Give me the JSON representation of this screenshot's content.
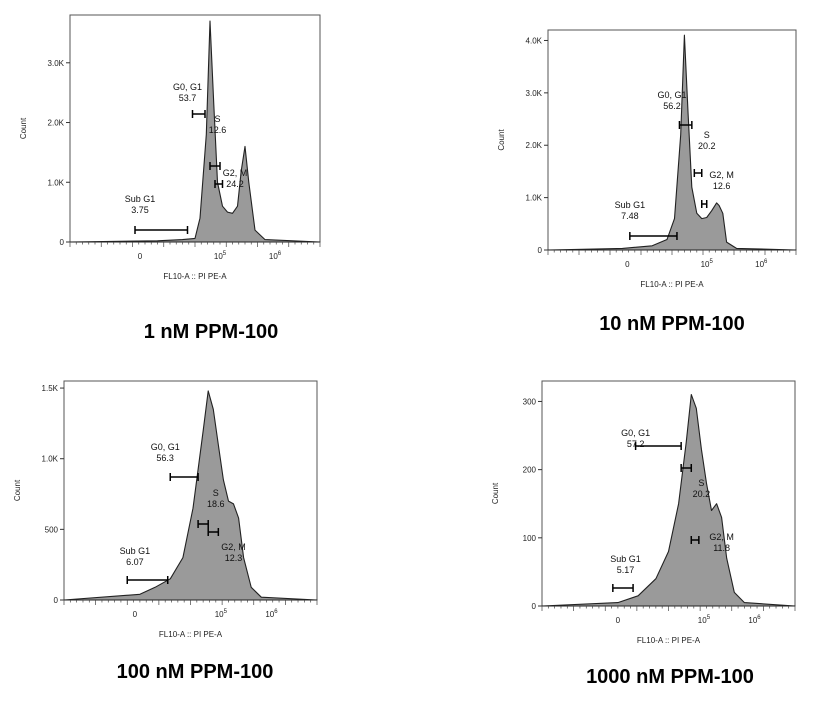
{
  "chart_data": [
    {
      "type": "area",
      "caption": "1 nM PPM-100",
      "xlabel": "FL10-A :: PI PE-A",
      "ylabel": "Count",
      "yticks": [
        "0",
        "1.0K",
        "2.0K",
        "3.0K"
      ],
      "ytick_values": [
        0,
        1000,
        2000,
        3000
      ],
      "xticks": [
        "0",
        "10^5",
        "10^6"
      ],
      "gates": [
        {
          "name": "Sub G1",
          "value": "3.75"
        },
        {
          "name": "G0, G1",
          "value": "53.7"
        },
        {
          "name": "S",
          "value": "12.6"
        },
        {
          "name": "G2, M",
          "value": "24.2"
        }
      ],
      "histogram": [
        [
          0,
          0
        ],
        [
          0.35,
          20
        ],
        [
          0.45,
          40
        ],
        [
          0.5,
          60
        ],
        [
          0.52,
          400
        ],
        [
          0.545,
          1800
        ],
        [
          0.56,
          3700
        ],
        [
          0.575,
          2300
        ],
        [
          0.59,
          1000
        ],
        [
          0.61,
          600
        ],
        [
          0.63,
          500
        ],
        [
          0.65,
          480
        ],
        [
          0.67,
          600
        ],
        [
          0.685,
          1200
        ],
        [
          0.7,
          1600
        ],
        [
          0.715,
          1000
        ],
        [
          0.74,
          200
        ],
        [
          0.78,
          40
        ],
        [
          1,
          0
        ]
      ]
    },
    {
      "type": "area",
      "caption": "10 nM PPM-100",
      "xlabel": "FL10-A :: PI PE-A",
      "ylabel": "Count",
      "yticks": [
        "0",
        "1.0K",
        "2.0K",
        "3.0K",
        "4.0K"
      ],
      "ytick_values": [
        0,
        1000,
        2000,
        3000,
        4000
      ],
      "xticks": [
        "0",
        "10^5",
        "10^6"
      ],
      "gates": [
        {
          "name": "Sub G1",
          "value": "7.48"
        },
        {
          "name": "G0, G1",
          "value": "56.2"
        },
        {
          "name": "S",
          "value": "20.2"
        },
        {
          "name": "G2, M",
          "value": "12.6"
        }
      ],
      "histogram": [
        [
          0,
          0
        ],
        [
          0.3,
          30
        ],
        [
          0.42,
          80
        ],
        [
          0.48,
          200
        ],
        [
          0.51,
          600
        ],
        [
          0.535,
          2200
        ],
        [
          0.55,
          4100
        ],
        [
          0.565,
          2600
        ],
        [
          0.58,
          1200
        ],
        [
          0.6,
          700
        ],
        [
          0.62,
          600
        ],
        [
          0.64,
          620
        ],
        [
          0.66,
          750
        ],
        [
          0.68,
          900
        ],
        [
          0.69,
          850
        ],
        [
          0.705,
          700
        ],
        [
          0.72,
          150
        ],
        [
          0.76,
          30
        ],
        [
          1,
          0
        ]
      ]
    },
    {
      "type": "area",
      "caption": "100 nM PPM-100",
      "xlabel": "FL10-A :: PI PE-A",
      "ylabel": "Count",
      "yticks": [
        "0",
        "500",
        "1.0K",
        "1.5K"
      ],
      "ytick_values": [
        0,
        500,
        1000,
        1500
      ],
      "xticks": [
        "0",
        "10^5",
        "10^6"
      ],
      "gates": [
        {
          "name": "Sub G1",
          "value": "6.07"
        },
        {
          "name": "G0, G1",
          "value": "56.3"
        },
        {
          "name": "S",
          "value": "18.6"
        },
        {
          "name": "G2, M",
          "value": "12.3"
        }
      ],
      "histogram": [
        [
          0,
          0
        ],
        [
          0.3,
          40
        ],
        [
          0.36,
          90
        ],
        [
          0.42,
          150
        ],
        [
          0.47,
          300
        ],
        [
          0.51,
          650
        ],
        [
          0.55,
          1200
        ],
        [
          0.57,
          1480
        ],
        [
          0.59,
          1350
        ],
        [
          0.61,
          1100
        ],
        [
          0.63,
          850
        ],
        [
          0.65,
          700
        ],
        [
          0.67,
          680
        ],
        [
          0.69,
          580
        ],
        [
          0.71,
          300
        ],
        [
          0.74,
          90
        ],
        [
          0.78,
          20
        ],
        [
          1,
          0
        ]
      ]
    },
    {
      "type": "area",
      "caption": "1000 nM PPM-100",
      "xlabel": "FL10-A :: PI PE-A",
      "ylabel": "Count",
      "yticks": [
        "0",
        "100",
        "200",
        "300"
      ],
      "ytick_values": [
        0,
        100,
        200,
        300
      ],
      "xticks": [
        "0",
        "10^5",
        "10^6"
      ],
      "gates": [
        {
          "name": "Sub G1",
          "value": "5.17"
        },
        {
          "name": "G0, G1",
          "value": "57.2"
        },
        {
          "name": "S",
          "value": "20.2"
        },
        {
          "name": "G2, M",
          "value": "11.8"
        }
      ],
      "histogram": [
        [
          0,
          0
        ],
        [
          0.3,
          5
        ],
        [
          0.38,
          15
        ],
        [
          0.45,
          40
        ],
        [
          0.5,
          80
        ],
        [
          0.54,
          150
        ],
        [
          0.57,
          240
        ],
        [
          0.59,
          310
        ],
        [
          0.61,
          290
        ],
        [
          0.63,
          230
        ],
        [
          0.65,
          180
        ],
        [
          0.67,
          140
        ],
        [
          0.69,
          150
        ],
        [
          0.71,
          130
        ],
        [
          0.73,
          70
        ],
        [
          0.76,
          20
        ],
        [
          0.8,
          5
        ],
        [
          1,
          0
        ]
      ]
    }
  ]
}
